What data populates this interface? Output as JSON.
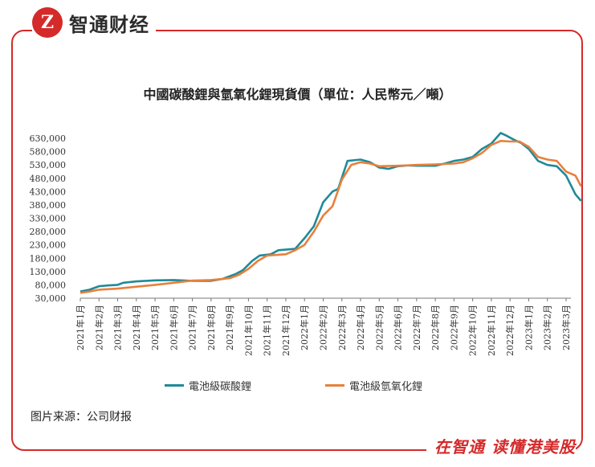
{
  "brand": {
    "logo_glyph": "Z",
    "name": "智通财经",
    "slogan": "在智通 读懂港美股",
    "accent_color": "#d42a2a"
  },
  "source_text": "图片来源：公司财报",
  "chart_data": {
    "type": "line",
    "title": "中國碳酸鋰與氫氧化鋰現貨價（單位：人民幣元／噸）",
    "xlabel": "",
    "ylabel": "",
    "categories": [
      "2021年1月",
      "2021年2月",
      "2021年3月",
      "2021年4月",
      "2021年5月",
      "2021年6月",
      "2021年7月",
      "2021年8月",
      "2021年9月",
      "2021年10月",
      "2021年11月",
      "2021年12月",
      "2022年1月",
      "2022年2月",
      "2022年3月",
      "2022年4月",
      "2022年5月",
      "2022年6月",
      "2022年7月",
      "2022年8月",
      "2022年9月",
      "2022年10月",
      "2022年11月",
      "2022年12月",
      "2023年1月",
      "2023年2月",
      "2023年3月"
    ],
    "yticks": [
      "30,000",
      "80,000",
      "130,000",
      "180,000",
      "230,000",
      "280,000",
      "330,000",
      "380,000",
      "430,000",
      "480,000",
      "530,000",
      "580,000",
      "630,000"
    ],
    "ylim": [
      30000,
      630000
    ],
    "grid": false,
    "legend_position": "bottom",
    "series": [
      {
        "name": "電池級碳酸鋰",
        "color": "#1f8a99",
        "points": [
          [
            0,
            55000
          ],
          [
            0.5,
            62000
          ],
          [
            1,
            75000
          ],
          [
            1.5,
            78000
          ],
          [
            2,
            80000
          ],
          [
            2.3,
            88000
          ],
          [
            3,
            93000
          ],
          [
            4,
            97000
          ],
          [
            5,
            98000
          ],
          [
            6,
            95000
          ],
          [
            7,
            95000
          ],
          [
            7.6,
            102000
          ],
          [
            8.3,
            120000
          ],
          [
            8.7,
            135000
          ],
          [
            9.2,
            170000
          ],
          [
            9.6,
            190000
          ],
          [
            10.2,
            195000
          ],
          [
            10.6,
            210000
          ],
          [
            11.5,
            215000
          ],
          [
            12,
            255000
          ],
          [
            12.5,
            300000
          ],
          [
            13,
            390000
          ],
          [
            13.5,
            430000
          ],
          [
            13.8,
            440000
          ],
          [
            14.3,
            545000
          ],
          [
            15,
            550000
          ],
          [
            15.5,
            540000
          ],
          [
            16,
            520000
          ],
          [
            16.5,
            515000
          ],
          [
            17,
            525000
          ],
          [
            17.5,
            528000
          ],
          [
            18,
            527000
          ],
          [
            19,
            527000
          ],
          [
            19.5,
            535000
          ],
          [
            20,
            545000
          ],
          [
            20.5,
            550000
          ],
          [
            21,
            560000
          ],
          [
            21.5,
            590000
          ],
          [
            22,
            610000
          ],
          [
            22.5,
            650000
          ],
          [
            22.8,
            640000
          ],
          [
            23.2,
            625000
          ],
          [
            23.6,
            612000
          ],
          [
            24,
            590000
          ],
          [
            24.5,
            545000
          ],
          [
            25,
            530000
          ],
          [
            25.5,
            525000
          ],
          [
            26,
            490000
          ],
          [
            26.5,
            420000
          ],
          [
            26.8,
            395000
          ]
        ]
      },
      {
        "name": "電池級氫氧化鋰",
        "color": "#e8803c",
        "points": [
          [
            0,
            50000
          ],
          [
            0.5,
            55000
          ],
          [
            1,
            62000
          ],
          [
            2,
            66000
          ],
          [
            3,
            73000
          ],
          [
            4,
            80000
          ],
          [
            5,
            88000
          ],
          [
            6,
            96000
          ],
          [
            7,
            98000
          ],
          [
            8,
            105000
          ],
          [
            8.5,
            118000
          ],
          [
            9,
            140000
          ],
          [
            9.5,
            170000
          ],
          [
            10,
            190000
          ],
          [
            11,
            195000
          ],
          [
            11.5,
            210000
          ],
          [
            12,
            230000
          ],
          [
            12.5,
            280000
          ],
          [
            13,
            340000
          ],
          [
            13.5,
            375000
          ],
          [
            14,
            475000
          ],
          [
            14.5,
            530000
          ],
          [
            15,
            540000
          ],
          [
            15.5,
            535000
          ],
          [
            16,
            525000
          ],
          [
            17,
            527000
          ],
          [
            18,
            530000
          ],
          [
            19,
            532000
          ],
          [
            20,
            535000
          ],
          [
            20.5,
            540000
          ],
          [
            21,
            555000
          ],
          [
            21.5,
            575000
          ],
          [
            22,
            605000
          ],
          [
            22.5,
            620000
          ],
          [
            23,
            618000
          ],
          [
            23.5,
            618000
          ],
          [
            24,
            598000
          ],
          [
            24.5,
            560000
          ],
          [
            25,
            550000
          ],
          [
            25.5,
            545000
          ],
          [
            26,
            505000
          ],
          [
            26.5,
            490000
          ],
          [
            26.8,
            450000
          ]
        ]
      }
    ]
  }
}
